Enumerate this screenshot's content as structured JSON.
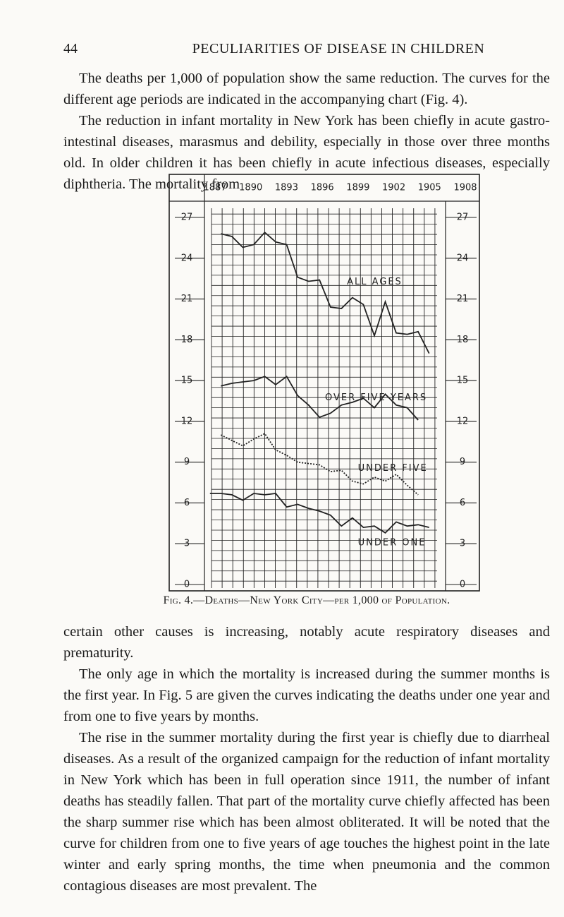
{
  "header": {
    "page_number": "44",
    "title": "PECULIARITIES OF DISEASE IN CHILDREN"
  },
  "paragraphs_top": [
    "The deaths per 1,000 of population show the same reduction. The curves for the different age periods are indicated in the accompanying chart (Fig. 4).",
    "The reduction in infant mortality in New York has been chiefly in acute gastro-intestinal diseases, marasmus and debility, especially in those over three months old. In older children it has been chiefly in acute infectious diseases, especially diphtheria. The mortality from"
  ],
  "chart_data": {
    "type": "line",
    "x": [
      1887,
      1888,
      1889,
      1890,
      1891,
      1892,
      1893,
      1894,
      1895,
      1896,
      1897,
      1898,
      1899,
      1900,
      1901,
      1902,
      1903,
      1904,
      1905,
      1906,
      1907,
      1908
    ],
    "xlim": [
      1887,
      1908
    ],
    "xticks": [
      1887,
      1890,
      1893,
      1896,
      1899,
      1902,
      1905,
      1908
    ],
    "ylim": [
      0,
      27
    ],
    "yticks": [
      0,
      3,
      6,
      9,
      12,
      15,
      18,
      21,
      24,
      27
    ],
    "series": [
      {
        "name": "ALL AGES",
        "color": "#222",
        "dash": false,
        "values": [
          null,
          25.8,
          25.6,
          24.8,
          25.0,
          25.9,
          25.2,
          25.0,
          22.6,
          22.3,
          22.4,
          20.4,
          20.3,
          21.1,
          20.6,
          18.3,
          20.8,
          18.5,
          18.4,
          18.6,
          17.0,
          null
        ]
      },
      {
        "name": "OVER FIVE YEARS",
        "color": "#222",
        "dash": false,
        "values": [
          null,
          14.6,
          14.8,
          14.9,
          15.0,
          15.3,
          14.7,
          15.3,
          13.9,
          13.2,
          12.3,
          12.6,
          13.2,
          13.4,
          13.7,
          13.0,
          14.0,
          13.2,
          13.0,
          12.1,
          null,
          null
        ]
      },
      {
        "name": "UNDER FIVE",
        "color": "#222",
        "dash": true,
        "values": [
          null,
          11.0,
          10.6,
          10.2,
          10.7,
          11.1,
          9.9,
          9.5,
          9.0,
          8.9,
          8.8,
          8.3,
          8.4,
          7.6,
          7.4,
          7.9,
          7.6,
          8.1,
          7.3,
          6.6,
          null,
          null
        ]
      },
      {
        "name": "UNDER ONE",
        "color": "#222",
        "dash": false,
        "values": [
          6.7,
          6.7,
          6.6,
          6.2,
          6.7,
          6.6,
          6.7,
          5.7,
          5.9,
          5.6,
          5.4,
          5.1,
          4.3,
          4.9,
          4.2,
          4.3,
          3.8,
          4.6,
          4.3,
          4.4,
          4.2,
          null
        ]
      }
    ]
  },
  "caption": "Fig. 4.—Deaths—New York City—per 1,000 of Population.",
  "paragraphs_bottom": [
    "certain other causes is increasing, notably acute respiratory diseases and prematurity.",
    "The only age in which the mortality is increased during the summer months is the first year. In Fig. 5 are given the curves indicating the deaths under one year and from one to five years by months.",
    "The rise in the summer mortality during the first year is chiefly due to diarrheal diseases. As a result of the organized campaign for the reduction of infant mortality in New York which has been in full operation since 1911, the number of infant deaths has steadily fallen. That part of the mortality curve chiefly affected has been the sharp summer rise which has been almost obliterated. It will be noted that the curve for children from one to five years of age touches the highest point in the late winter and early spring months, the time when pneumonia and the common contagious diseases are most prevalent. The"
  ]
}
